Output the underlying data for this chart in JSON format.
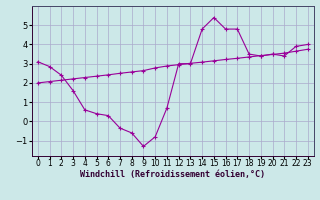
{
  "line1_x": [
    0,
    1,
    2,
    3,
    4,
    5,
    6,
    7,
    8,
    9,
    10,
    11,
    12,
    13,
    14,
    15,
    16,
    17,
    18,
    19,
    20,
    21,
    22,
    23
  ],
  "line1_y": [
    3.1,
    2.85,
    2.4,
    1.6,
    0.6,
    0.4,
    0.3,
    -0.35,
    -0.6,
    -1.3,
    -0.8,
    0.7,
    3.0,
    3.0,
    4.8,
    5.4,
    4.8,
    4.8,
    3.5,
    3.4,
    3.5,
    3.4,
    3.9,
    4.0
  ],
  "line2_x": [
    0,
    1,
    2,
    3,
    4,
    5,
    6,
    7,
    8,
    9,
    10,
    11,
    12,
    13,
    14,
    15,
    16,
    17,
    18,
    19,
    20,
    21,
    22,
    23
  ],
  "line2_y": [
    2.0,
    2.07,
    2.14,
    2.21,
    2.28,
    2.35,
    2.42,
    2.5,
    2.57,
    2.64,
    2.78,
    2.88,
    2.95,
    3.02,
    3.08,
    3.15,
    3.22,
    3.28,
    3.35,
    3.42,
    3.48,
    3.55,
    3.65,
    3.75
  ],
  "line_color": "#990099",
  "bg_color": "#cce8e8",
  "grid_color": "#aaaacc",
  "xlabel": "Windchill (Refroidissement éolien,°C)",
  "ylim": [
    -1.8,
    6.0
  ],
  "xlim": [
    -0.5,
    23.5
  ],
  "yticks": [
    -1,
    0,
    1,
    2,
    3,
    4,
    5
  ],
  "xticks": [
    0,
    1,
    2,
    3,
    4,
    5,
    6,
    7,
    8,
    9,
    10,
    11,
    12,
    13,
    14,
    15,
    16,
    17,
    18,
    19,
    20,
    21,
    22,
    23
  ],
  "tick_fontsize": 5.5,
  "xlabel_fontsize": 6.0
}
